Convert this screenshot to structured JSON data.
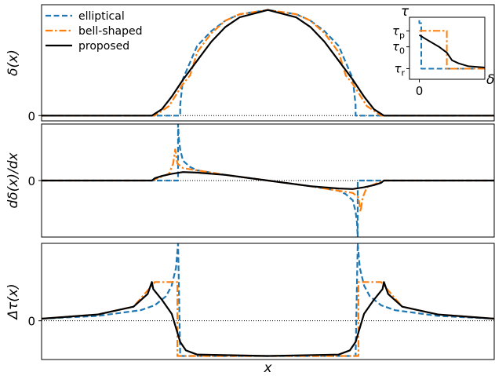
{
  "chart_data": [
    {
      "type": "line",
      "panel": "top",
      "ylabel": "δ(x)",
      "xlabel": "",
      "yticks": [
        "0"
      ],
      "xlim": [
        -1.6,
        1.6
      ],
      "ylim": [
        -0.05,
        1.05
      ],
      "series": [
        {
          "name": "elliptical",
          "style": "dashed",
          "color": "#1f77b4",
          "x": [
            -1.6,
            -0.62,
            -0.62,
            -0.6,
            -0.5,
            -0.4,
            -0.3,
            -0.2,
            0.0,
            0.2,
            0.3,
            0.4,
            0.5,
            0.6,
            0.62,
            0.62,
            1.6
          ],
          "y": [
            0,
            0,
            0.1,
            0.35,
            0.66,
            0.8,
            0.9,
            0.96,
            1.0,
            0.96,
            0.9,
            0.8,
            0.66,
            0.35,
            0.1,
            0,
            0
          ]
        },
        {
          "name": "bell-shaped",
          "style": "dashdot",
          "color": "#ff7f0e",
          "x": [
            -1.6,
            -0.8,
            -0.7,
            -0.6,
            -0.55,
            -0.5,
            -0.4,
            -0.3,
            -0.2,
            0.0,
            0.2,
            0.3,
            0.4,
            0.5,
            0.55,
            0.6,
            0.7,
            0.8,
            1.6
          ],
          "y": [
            0,
            0,
            0.09,
            0.3,
            0.38,
            0.6,
            0.78,
            0.9,
            0.96,
            1.0,
            0.96,
            0.9,
            0.78,
            0.6,
            0.38,
            0.3,
            0.09,
            0,
            0
          ]
        },
        {
          "name": "proposed",
          "style": "solid",
          "color": "#000000",
          "x": [
            -1.6,
            -0.82,
            -0.75,
            -0.68,
            -0.6,
            -0.5,
            -0.4,
            -0.3,
            -0.2,
            0.0,
            0.2,
            0.3,
            0.4,
            0.5,
            0.6,
            0.68,
            0.75,
            0.82,
            1.6
          ],
          "y": [
            0,
            0,
            0.06,
            0.18,
            0.34,
            0.52,
            0.7,
            0.84,
            0.93,
            1.0,
            0.93,
            0.84,
            0.7,
            0.52,
            0.34,
            0.18,
            0.06,
            0,
            0
          ]
        }
      ]
    },
    {
      "type": "line",
      "panel": "middle",
      "ylabel": "dδ(x)/dx",
      "xlabel": "",
      "yticks": [
        "0"
      ],
      "xlim": [
        -1.6,
        1.6
      ],
      "ylim": [
        -1.0,
        1.0
      ],
      "series": [
        {
          "name": "elliptical",
          "style": "dashed",
          "color": "#1f77b4",
          "x": [
            -1.6,
            -0.635,
            -0.635,
            -0.63,
            -0.62,
            -0.6,
            -0.55,
            -0.5,
            -0.3,
            0.0,
            0.3,
            0.5,
            0.55,
            0.6,
            0.62,
            0.63,
            0.635,
            0.635,
            1.6
          ],
          "y": [
            0,
            0,
            1.0,
            0.75,
            0.55,
            0.35,
            0.24,
            0.18,
            0.1,
            0.0,
            -0.1,
            -0.18,
            -0.24,
            -0.35,
            -0.55,
            -0.75,
            -1.0,
            0,
            0
          ]
        },
        {
          "name": "bell-shaped",
          "style": "dashdot",
          "color": "#ff7f0e",
          "x": [
            -1.6,
            -0.82,
            -0.7,
            -0.67,
            -0.655,
            -0.64,
            -0.6,
            -0.5,
            -0.3,
            0.0,
            0.3,
            0.5,
            0.6,
            0.64,
            0.655,
            0.67,
            0.7,
            0.82,
            1.6
          ],
          "y": [
            0,
            0,
            0.12,
            0.3,
            0.55,
            0.3,
            0.22,
            0.18,
            0.1,
            0.0,
            -0.1,
            -0.18,
            -0.22,
            -0.3,
            -0.55,
            -0.3,
            -0.12,
            0,
            0
          ]
        },
        {
          "name": "proposed",
          "style": "solid",
          "color": "#000000",
          "x": [
            -1.6,
            -0.82,
            -0.8,
            -0.75,
            -0.68,
            -0.6,
            -0.5,
            -0.3,
            0.0,
            0.3,
            0.5,
            0.6,
            0.68,
            0.75,
            0.8,
            0.82,
            1.6
          ],
          "y": [
            0,
            0,
            0.04,
            0.08,
            0.12,
            0.15,
            0.14,
            0.1,
            0.0,
            -0.1,
            -0.14,
            -0.15,
            -0.12,
            -0.08,
            -0.04,
            0,
            0
          ]
        }
      ]
    },
    {
      "type": "line",
      "panel": "bottom",
      "ylabel": "Δτ(x)",
      "xlabel": "x",
      "yticks": [
        "0"
      ],
      "xlim": [
        -1.6,
        1.6
      ],
      "ylim": [
        -0.55,
        1.1
      ],
      "series": [
        {
          "name": "elliptical",
          "style": "dashed",
          "color": "#1f77b4",
          "x": [
            -1.6,
            -1.2,
            -0.9,
            -0.8,
            -0.72,
            -0.68,
            -0.65,
            -0.635,
            -0.62,
            -0.6,
            -0.4,
            0.0,
            0.4,
            0.6,
            0.62,
            0.635,
            0.65,
            0.68,
            0.72,
            0.8,
            0.9,
            1.2,
            1.6
          ],
          "y": [
            0.03,
            0.07,
            0.15,
            0.22,
            0.35,
            0.5,
            0.75,
            1.1,
            -0.5,
            -0.5,
            -0.5,
            -0.5,
            -0.5,
            -0.5,
            -0.5,
            1.1,
            0.75,
            0.5,
            0.35,
            0.22,
            0.15,
            0.07,
            0.03
          ]
        },
        {
          "name": "bell-shaped",
          "style": "dashdot",
          "color": "#ff7f0e",
          "x": [
            -1.6,
            -1.2,
            -0.95,
            -0.82,
            -0.8,
            -0.64,
            -0.64,
            0.64,
            0.64,
            0.8,
            0.82,
            0.95,
            1.2,
            1.6
          ],
          "y": [
            0.03,
            0.09,
            0.2,
            0.5,
            0.55,
            0.55,
            -0.5,
            -0.5,
            0.55,
            0.55,
            0.5,
            0.2,
            0.09,
            0.03
          ]
        },
        {
          "name": "proposed",
          "style": "solid",
          "color": "#000000",
          "x": [
            -1.6,
            -1.2,
            -0.95,
            -0.85,
            -0.82,
            -0.81,
            -0.75,
            -0.68,
            -0.62,
            -0.58,
            -0.5,
            0.0,
            0.5,
            0.58,
            0.62,
            0.68,
            0.75,
            0.81,
            0.82,
            0.85,
            0.95,
            1.2,
            1.6
          ],
          "y": [
            0.03,
            0.09,
            0.2,
            0.38,
            0.55,
            0.45,
            0.3,
            0.1,
            -0.3,
            -0.42,
            -0.48,
            -0.5,
            -0.48,
            -0.42,
            -0.3,
            0.1,
            0.3,
            0.45,
            0.55,
            0.38,
            0.2,
            0.09,
            0.03
          ]
        }
      ]
    },
    {
      "type": "line",
      "panel": "inset",
      "xlabel": "δ",
      "ylabel": "τ",
      "xticks": [
        "0"
      ],
      "ytick_labels": [
        {
          "main": "τ",
          "sub": "p",
          "value": 0.82
        },
        {
          "main": "τ",
          "sub": "0",
          "value": 0.55
        },
        {
          "main": "τ",
          "sub": "r",
          "value": 0.18
        }
      ],
      "xlim": [
        -0.15,
        1.0
      ],
      "ylim": [
        0.0,
        1.05
      ],
      "series": [
        {
          "name": "elliptical",
          "style": "dashed",
          "color": "#1f77b4",
          "x": [
            0.0,
            0.0,
            0.03,
            0.03,
            1.0
          ],
          "y": [
            1.0,
            0.95,
            0.95,
            0.18,
            0.18
          ]
        },
        {
          "name": "bell-shaped",
          "style": "dashdot",
          "color": "#ff7f0e",
          "x": [
            0.0,
            0.42,
            0.42,
            0.42,
            1.0
          ],
          "y": [
            0.82,
            0.82,
            0.82,
            0.18,
            0.18
          ]
        },
        {
          "name": "proposed",
          "style": "solid",
          "color": "#000000",
          "x": [
            0.0,
            0.1,
            0.3,
            0.42,
            0.5,
            0.6,
            0.75,
            1.0
          ],
          "y": [
            0.75,
            0.68,
            0.55,
            0.45,
            0.32,
            0.27,
            0.22,
            0.2
          ]
        }
      ]
    }
  ],
  "legend": {
    "placement": "top-left",
    "entries": [
      {
        "label": "elliptical",
        "style": "dashed",
        "color": "#1f77b4"
      },
      {
        "label": "bell-shaped",
        "style": "dashdot",
        "color": "#ff7f0e"
      },
      {
        "label": "proposed",
        "style": "solid",
        "color": "#000000"
      }
    ]
  }
}
